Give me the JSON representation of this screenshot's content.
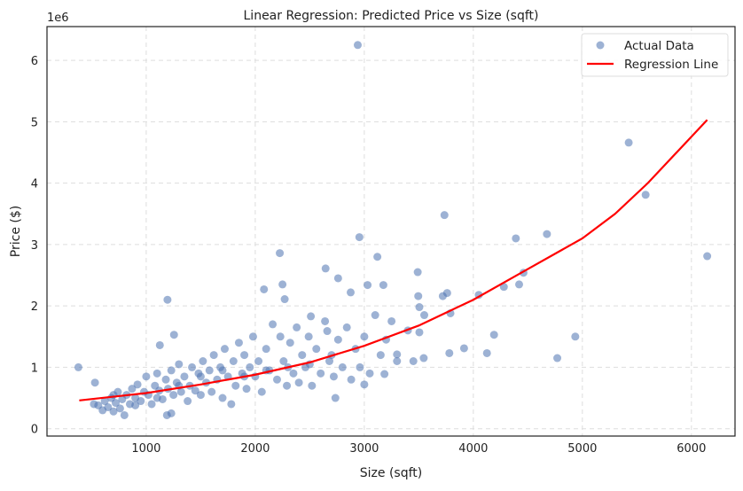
{
  "chart_data": {
    "type": "scatter",
    "title": "Linear Regression: Predicted Price vs Size (sqft)",
    "xlabel": "Size (sqft)",
    "ylabel": "Price ($)",
    "y_multiplier_label": "1e6",
    "xlim": [
      90,
      6400
    ],
    "ylim": [
      -0.12,
      6.55
    ],
    "x_ticks": [
      1000,
      2000,
      3000,
      4000,
      5000,
      6000
    ],
    "y_ticks": [
      0,
      1,
      2,
      3,
      4,
      5,
      6
    ],
    "grid": true,
    "legend_placement": "top-right",
    "colors": {
      "scatter": "#4c72b0",
      "line": "#ff0000"
    },
    "series": [
      {
        "name": "Actual Data",
        "kind": "scatter",
        "points": [
          [
            378,
            1.0
          ],
          [
            2940,
            6.25
          ],
          [
            5425,
            4.66
          ],
          [
            5580,
            3.81
          ],
          [
            6145,
            2.81
          ],
          [
            4675,
            3.17
          ],
          [
            4390,
            3.1
          ],
          [
            3735,
            3.48
          ],
          [
            2955,
            3.12
          ],
          [
            2225,
            2.86
          ],
          [
            1195,
            2.1
          ],
          [
            2080,
            2.27
          ],
          [
            2645,
            2.61
          ],
          [
            3120,
            2.8
          ],
          [
            4935,
            1.5
          ],
          [
            4770,
            1.15
          ],
          [
            4125,
            1.23
          ],
          [
            4190,
            1.53
          ],
          [
            3915,
            1.31
          ],
          [
            4050,
            2.18
          ],
          [
            4420,
            2.35
          ],
          [
            4460,
            2.54
          ],
          [
            4280,
            2.31
          ],
          [
            3720,
            2.16
          ],
          [
            3760,
            2.21
          ],
          [
            3490,
            2.55
          ],
          [
            3495,
            2.16
          ],
          [
            3505,
            1.98
          ],
          [
            3780,
            1.23
          ],
          [
            3790,
            1.88
          ],
          [
            3545,
            1.15
          ],
          [
            3505,
            1.57
          ],
          [
            3030,
            2.34
          ],
          [
            3175,
            2.34
          ],
          [
            2760,
            2.45
          ],
          [
            2875,
            2.22
          ],
          [
            2250,
            2.35
          ],
          [
            2270,
            2.11
          ],
          [
            1125,
            1.36
          ],
          [
            1255,
            1.53
          ],
          [
            1230,
            0.25
          ],
          [
            1190,
            0.22
          ],
          [
            530,
            0.75
          ],
          [
            2735,
            0.5
          ],
          [
            3000,
            0.72
          ],
          [
            3185,
            0.89
          ],
          [
            3300,
            1.21
          ],
          [
            2510,
            1.83
          ],
          [
            2660,
            1.59
          ],
          [
            520,
            0.4
          ],
          [
            560,
            0.38
          ],
          [
            600,
            0.3
          ],
          [
            620,
            0.45
          ],
          [
            650,
            0.35
          ],
          [
            680,
            0.5
          ],
          [
            700,
            0.28
          ],
          [
            720,
            0.42
          ],
          [
            740,
            0.6
          ],
          [
            760,
            0.33
          ],
          [
            780,
            0.48
          ],
          [
            800,
            0.22
          ],
          [
            820,
            0.55
          ],
          [
            850,
            0.4
          ],
          [
            870,
            0.65
          ],
          [
            900,
            0.5
          ],
          [
            920,
            0.72
          ],
          [
            950,
            0.45
          ],
          [
            980,
            0.6
          ],
          [
            1000,
            0.85
          ],
          [
            1020,
            0.55
          ],
          [
            1050,
            0.4
          ],
          [
            1080,
            0.7
          ],
          [
            1100,
            0.9
          ],
          [
            1120,
            0.62
          ],
          [
            1150,
            0.48
          ],
          [
            1180,
            0.8
          ],
          [
            1200,
            0.65
          ],
          [
            1230,
            0.95
          ],
          [
            1250,
            0.55
          ],
          [
            1280,
            0.75
          ],
          [
            1300,
            1.05
          ],
          [
            1320,
            0.6
          ],
          [
            1350,
            0.85
          ],
          [
            1380,
            0.45
          ],
          [
            1400,
            0.7
          ],
          [
            1420,
            1.0
          ],
          [
            1450,
            0.62
          ],
          [
            1480,
            0.9
          ],
          [
            1500,
            0.55
          ],
          [
            1520,
            1.1
          ],
          [
            1550,
            0.75
          ],
          [
            1580,
            0.95
          ],
          [
            1600,
            0.6
          ],
          [
            1620,
            1.2
          ],
          [
            1650,
            0.8
          ],
          [
            1680,
            1.0
          ],
          [
            1700,
            0.5
          ],
          [
            1720,
            1.3
          ],
          [
            1750,
            0.85
          ],
          [
            1780,
            0.4
          ],
          [
            1800,
            1.1
          ],
          [
            1820,
            0.7
          ],
          [
            1850,
            1.4
          ],
          [
            1880,
            0.9
          ],
          [
            1900,
            1.2
          ],
          [
            1920,
            0.65
          ],
          [
            1950,
            1.0
          ],
          [
            1980,
            1.5
          ],
          [
            2000,
            0.85
          ],
          [
            2030,
            1.1
          ],
          [
            2060,
            0.6
          ],
          [
            2100,
            1.3
          ],
          [
            2130,
            0.95
          ],
          [
            2160,
            1.7
          ],
          [
            2200,
            0.8
          ],
          [
            2230,
            1.5
          ],
          [
            2260,
            1.1
          ],
          [
            2290,
            0.7
          ],
          [
            2320,
            1.4
          ],
          [
            2350,
            0.9
          ],
          [
            2380,
            1.65
          ],
          [
            2400,
            0.75
          ],
          [
            2430,
            1.2
          ],
          [
            2460,
            1.0
          ],
          [
            2490,
            1.5
          ],
          [
            2520,
            0.7
          ],
          [
            2560,
            1.3
          ],
          [
            2600,
            0.9
          ],
          [
            2640,
            1.75
          ],
          [
            2680,
            1.1
          ],
          [
            2720,
            0.85
          ],
          [
            2760,
            1.45
          ],
          [
            2800,
            1.0
          ],
          [
            2840,
            1.65
          ],
          [
            2880,
            0.8
          ],
          [
            2920,
            1.3
          ],
          [
            2960,
            1.0
          ],
          [
            3000,
            1.5
          ],
          [
            3050,
            0.9
          ],
          [
            3100,
            1.85
          ],
          [
            3150,
            1.2
          ],
          [
            3200,
            1.45
          ],
          [
            3250,
            1.75
          ],
          [
            3300,
            1.1
          ],
          [
            3400,
            1.6
          ],
          [
            3450,
            1.1
          ],
          [
            3550,
            1.85
          ],
          [
            700,
            0.55
          ],
          [
            900,
            0.38
          ],
          [
            1100,
            0.5
          ],
          [
            1300,
            0.7
          ],
          [
            1500,
            0.85
          ],
          [
            1700,
            0.95
          ],
          [
            1900,
            0.85
          ],
          [
            2100,
            0.95
          ],
          [
            2300,
            1.0
          ],
          [
            2500,
            1.05
          ],
          [
            2700,
            1.2
          ]
        ]
      },
      {
        "name": "Regression Line",
        "kind": "line",
        "points": [
          [
            386,
            0.46
          ],
          [
            1000,
            0.58
          ],
          [
            1500,
            0.72
          ],
          [
            2000,
            0.88
          ],
          [
            2500,
            1.08
          ],
          [
            3000,
            1.35
          ],
          [
            3500,
            1.68
          ],
          [
            4000,
            2.1
          ],
          [
            4500,
            2.6
          ],
          [
            5000,
            3.1
          ],
          [
            5300,
            3.5
          ],
          [
            5600,
            4.0
          ],
          [
            6145,
            5.03
          ]
        ]
      }
    ]
  }
}
